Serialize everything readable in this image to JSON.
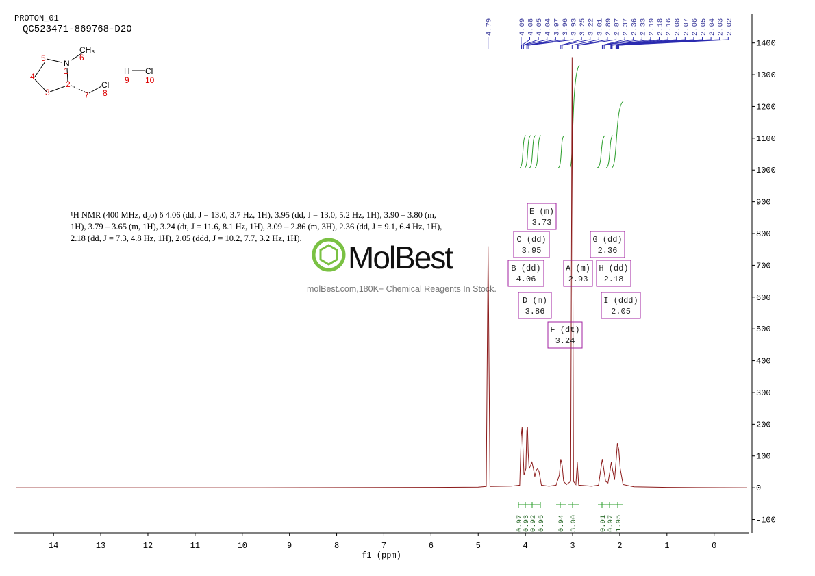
{
  "header": {
    "experiment": "PROTON_01",
    "sample": "QC523471-869768-D2O"
  },
  "molecule": {
    "atom_labels": [
      "N",
      "CH₃",
      "Cl",
      "H",
      "Cl"
    ],
    "atom_numbers": [
      1,
      2,
      3,
      4,
      5,
      6,
      7,
      8,
      9,
      10
    ]
  },
  "watermark": {
    "brand": "MolBest",
    "tagline": "molBest.com,180K+ Chemical Reagents In Stock."
  },
  "chart_data": {
    "type": "line",
    "description": "¹H NMR (400 MHz, d₂o) δ 4.06 (dd, J = 13.0, 3.7 Hz, 1H), 3.95 (dd, J = 13.0, 5.2 Hz, 1H), 3.90 – 3.80 (m, 1H), 3.79 – 3.65 (m, 1H), 3.24 (dt, J = 11.6, 8.1 Hz, 1H), 3.09 – 2.86 (m, 3H), 2.36 (dd, J = 9.1, 6.4 Hz, 1H), 2.18 (dd, J = 7.3, 4.8 Hz, 1H), 2.05 (ddd, J = 10.2, 7.7, 3.2 Hz, 1H).",
    "x_label": "f1 (ppm)",
    "color": "#8b1a1a",
    "x": [
      14.8,
      10.0,
      6.0,
      5.0,
      4.83,
      4.79,
      4.75,
      4.3,
      4.12,
      4.09,
      4.07,
      4.05,
      4.03,
      3.99,
      3.97,
      3.955,
      3.94,
      3.92,
      3.89,
      3.86,
      3.83,
      3.8,
      3.77,
      3.74,
      3.71,
      3.66,
      3.5,
      3.35,
      3.28,
      3.25,
      3.22,
      3.19,
      3.13,
      3.04,
      3.01,
      2.98,
      2.93,
      2.9,
      2.87,
      2.6,
      2.45,
      2.4,
      2.37,
      2.34,
      2.3,
      2.25,
      2.21,
      2.18,
      2.15,
      2.11,
      2.08,
      2.05,
      2.02,
      1.99,
      1.93,
      1.7,
      1.0,
      -0.7
    ],
    "values": [
      0,
      0,
      1,
      2,
      4,
      760,
      4,
      5,
      8,
      160,
      190,
      120,
      40,
      60,
      180,
      190,
      110,
      60,
      70,
      80,
      60,
      35,
      55,
      60,
      50,
      8,
      5,
      8,
      40,
      90,
      70,
      20,
      10,
      20,
      1355,
      20,
      10,
      80,
      8,
      5,
      8,
      60,
      90,
      60,
      20,
      15,
      50,
      80,
      55,
      25,
      80,
      140,
      120,
      60,
      10,
      3,
      1,
      0
    ],
    "xlim": [
      14.83,
      -0.73
    ],
    "ylim": [
      -142,
      1492
    ],
    "xticks": [
      14,
      13,
      12,
      11,
      10,
      9,
      8,
      7,
      6,
      5,
      4,
      3,
      2,
      1,
      0
    ],
    "yticks": [
      -100,
      0,
      100,
      200,
      300,
      400,
      500,
      600,
      700,
      800,
      900,
      1000,
      1100,
      1200,
      1300,
      1400
    ],
    "peaks": [
      4.79,
      4.09,
      4.08,
      4.05,
      4.04,
      3.97,
      3.96,
      3.93,
      3.25,
      3.22,
      3.01,
      2.89,
      2.87,
      2.37,
      2.36,
      2.33,
      2.19,
      2.18,
      2.16,
      2.08,
      2.07,
      2.06,
      2.05,
      2.04,
      2.03,
      2.02
    ],
    "integrals": [
      0.97,
      0.93,
      0.92,
      0.95,
      0.94,
      {
        "value": 3,
        "label": "3.00"
      },
      0.91,
      0.97,
      1.95
    ],
    "multiplets": [
      {
        "name": "E (m)",
        "shift": 3.73
      },
      {
        "name": "C (dd)",
        "shift": 3.95
      },
      {
        "name": "B (dd)",
        "shift": 4.06
      },
      {
        "name": "D (m)",
        "shift": 3.86
      },
      {
        "name": "A (m)",
        "shift": 2.93
      },
      {
        "name": "F (dt)",
        "shift": 3.24
      },
      {
        "name": "G (dd)",
        "shift": 2.36
      },
      {
        "name": "H (dd)",
        "shift": 2.18
      },
      {
        "name": "I (ddd)",
        "shift": 2.05
      }
    ]
  }
}
